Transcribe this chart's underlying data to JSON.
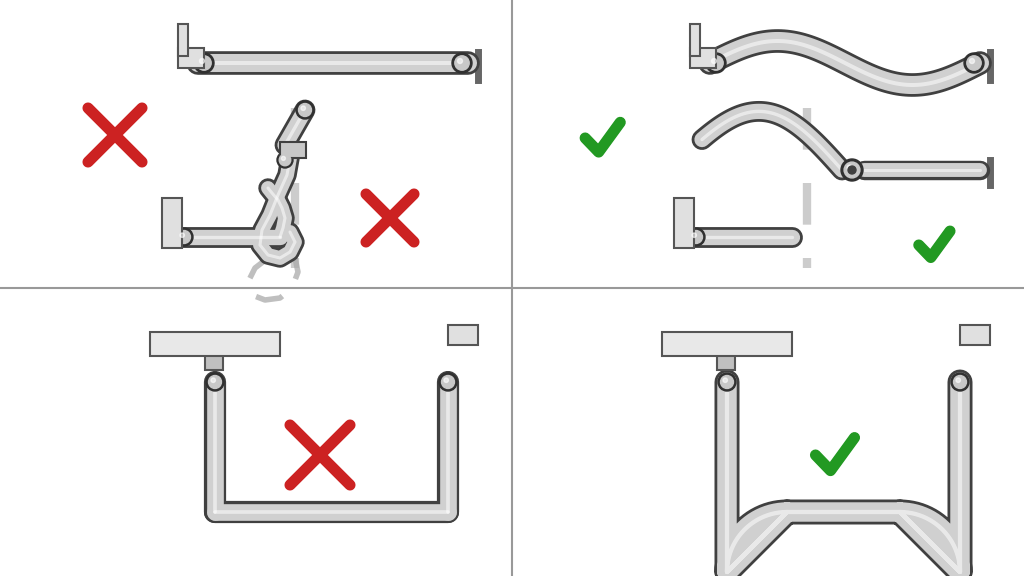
{
  "background_color": "#ffffff",
  "hose_color_light": "#d8d8d8",
  "hose_color_mid": "#b0b0b0",
  "hose_color_dark": "#808080",
  "hose_color_outline": "#404040",
  "fitting_color": "#c0c0c0",
  "fitting_outline": "#303030",
  "dashed_color": "#aaaaaa",
  "wrong_color": "#cc2222",
  "correct_color": "#229922",
  "wall_color": "#555555",
  "bracket_color": "#e0e0e0",
  "bracket_outline": "#555555",
  "divider_color": "#999999"
}
